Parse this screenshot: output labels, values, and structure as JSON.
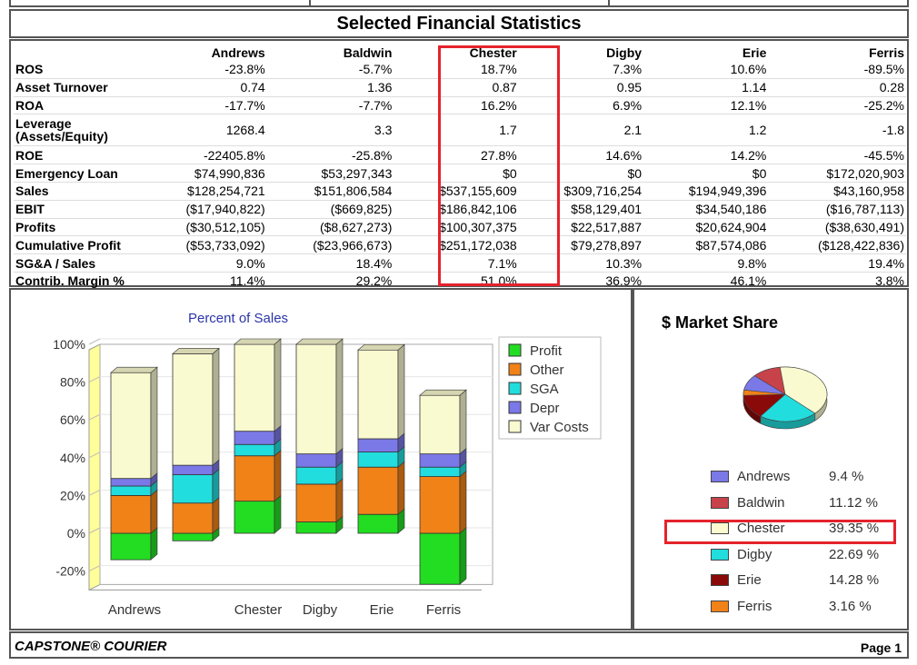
{
  "title": "Selected Financial Statistics",
  "columns": [
    "Andrews",
    "Baldwin",
    "Chester",
    "Digby",
    "Erie",
    "Ferris"
  ],
  "rows": [
    {
      "label": "ROS",
      "values": [
        "-23.8%",
        "-5.7%",
        "18.7%",
        "7.3%",
        "10.6%",
        "-89.5%"
      ]
    },
    {
      "label": "Asset Turnover",
      "values": [
        "0.74",
        "1.36",
        "0.87",
        "0.95",
        "1.14",
        "0.28"
      ]
    },
    {
      "label": "ROA",
      "values": [
        "-17.7%",
        "-7.7%",
        "16.2%",
        "6.9%",
        "12.1%",
        "-25.2%"
      ]
    },
    {
      "label": "Leverage (Assets/Equity)",
      "values": [
        "1268.4",
        "3.3",
        "1.7",
        "2.1",
        "1.2",
        "-1.8"
      ]
    },
    {
      "label": "ROE",
      "values": [
        "-22405.8%",
        "-25.8%",
        "27.8%",
        "14.6%",
        "14.2%",
        "-45.5%"
      ]
    },
    {
      "label": "Emergency Loan",
      "values": [
        "$74,990,836",
        "$53,297,343",
        "$0",
        "$0",
        "$0",
        "$172,020,903"
      ]
    },
    {
      "label": "Sales",
      "values": [
        "$128,254,721",
        "$151,806,584",
        "$537,155,609",
        "$309,716,254",
        "$194,949,396",
        "$43,160,958"
      ]
    },
    {
      "label": "EBIT",
      "values": [
        "($17,940,822)",
        "($669,825)",
        "$186,842,106",
        "$58,129,401",
        "$34,540,186",
        "($16,787,113)"
      ]
    },
    {
      "label": "Profits",
      "values": [
        "($30,512,105)",
        "($8,627,273)",
        "$100,307,375",
        "$22,517,887",
        "$20,624,904",
        "($38,630,491)"
      ]
    },
    {
      "label": "Cumulative Profit",
      "values": [
        "($53,733,092)",
        "($23,966,673)",
        "$251,172,038",
        "$79,278,897",
        "$87,574,086",
        "($128,422,836)"
      ]
    },
    {
      "label": "SG&A / Sales",
      "values": [
        "9.0%",
        "18.4%",
        "7.1%",
        "10.3%",
        "9.8%",
        "19.4%"
      ]
    },
    {
      "label": "Contrib. Margin %",
      "values": [
        "11.4%",
        "29.2%",
        "51.0%",
        "36.9%",
        "46.1%",
        "3.8%"
      ]
    }
  ],
  "chart_data": [
    {
      "type": "bar",
      "title": "Percent of Sales",
      "categories": [
        "Andrews",
        "Baldwin",
        "Chester",
        "Digby",
        "Erie",
        "Ferris"
      ],
      "category_labels_shown": [
        "Andrews",
        "",
        "Chester",
        "Digby",
        "Erie",
        "Ferris"
      ],
      "ylim": [
        -30,
        100
      ],
      "yticks": [
        "100%",
        "80%",
        "60%",
        "40%",
        "20%",
        "0%",
        "-20%"
      ],
      "ytick_values": [
        100,
        80,
        60,
        40,
        20,
        0,
        -20
      ],
      "legend_position": "right",
      "series": [
        {
          "name": "Profit",
          "color": "#22dd22",
          "values": [
            -14,
            -4,
            17,
            6,
            10,
            -27
          ]
        },
        {
          "name": "Other",
          "color": "#f08218",
          "values": [
            20,
            16,
            24,
            20,
            25,
            30
          ]
        },
        {
          "name": "SGA",
          "color": "#22dddd",
          "values": [
            5,
            15,
            6,
            9,
            8,
            5
          ]
        },
        {
          "name": "Depr",
          "color": "#7b78e8",
          "values": [
            4,
            5,
            7,
            7,
            7,
            7
          ]
        },
        {
          "name": "Var Costs",
          "color": "#fafad0",
          "values": [
            56,
            59,
            46,
            58,
            47,
            31
          ]
        }
      ]
    },
    {
      "type": "pie",
      "title": "$ Market Share",
      "legend_position": "bottom-right",
      "slices": [
        {
          "name": "Andrews",
          "label": "9.4 %",
          "value": 9.4,
          "color": "#7b78e8"
        },
        {
          "name": "Baldwin",
          "label": "11.12 %",
          "value": 11.12,
          "color": "#c8424a"
        },
        {
          "name": "Chester",
          "label": "39.35 %",
          "value": 39.35,
          "color": "#fafad0"
        },
        {
          "name": "Digby",
          "label": "22.69 %",
          "value": 22.69,
          "color": "#22dddd"
        },
        {
          "name": "Erie",
          "label": "14.28 %",
          "value": 14.28,
          "color": "#8a0a0a"
        },
        {
          "name": "Ferris",
          "label": "3.16 %",
          "value": 3.16,
          "color": "#f08218"
        }
      ]
    }
  ],
  "footer": {
    "left": "CAPSTONE® COURIER",
    "right": "Page 1"
  }
}
